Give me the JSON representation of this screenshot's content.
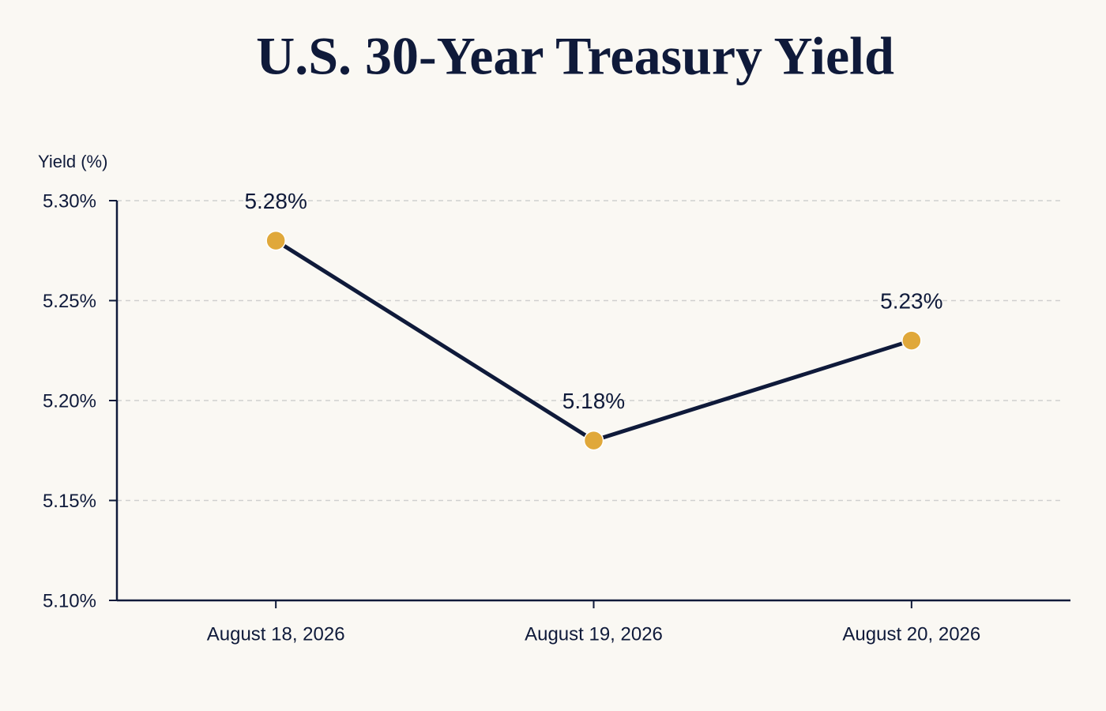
{
  "chart_data": {
    "type": "line",
    "title": "U.S. 30-Year Treasury Yield",
    "y_label": "Yield (%)",
    "categories": [
      "August 18, 2026",
      "August 19, 2026",
      "August 20, 2026"
    ],
    "values": [
      5.28,
      5.18,
      5.23
    ],
    "value_labels": [
      "5.28%",
      "5.18%",
      "5.23%"
    ],
    "color": "#0f1a3a",
    "marker_color": "#e0a83a",
    "ylim": [
      5.1,
      5.3
    ],
    "yticks": [
      {
        "value": 5.1,
        "label": "5.10%"
      },
      {
        "value": 5.15,
        "label": "5.15%"
      },
      {
        "value": 5.2,
        "label": "5.20%"
      },
      {
        "value": 5.25,
        "label": "5.25%"
      },
      {
        "value": 5.3,
        "label": "5.30%"
      }
    ],
    "grid": true
  }
}
